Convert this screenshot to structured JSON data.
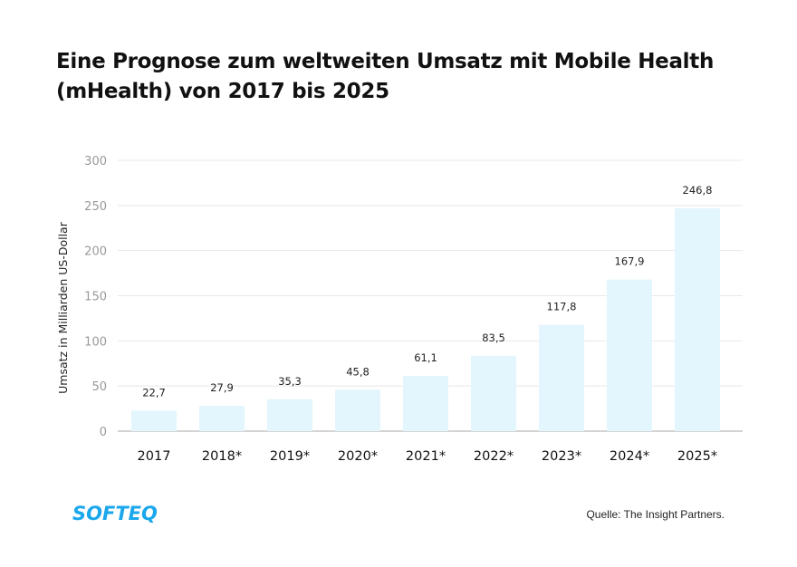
{
  "chart_data": {
    "type": "bar",
    "title": "Eine Prognose zum weltweiten Umsatz mit Mobile Health (mHealth) von 2017 bis 2025",
    "xlabel": "",
    "ylabel": "Umsatz in Milliarden US-Dollar",
    "categories": [
      "2017",
      "2018*",
      "2019*",
      "2020*",
      "2021*",
      "2022*",
      "2023*",
      "2024*",
      "2025*"
    ],
    "values": [
      22.7,
      27.9,
      35.3,
      45.8,
      61.1,
      83.5,
      117.8,
      167.9,
      246.8
    ],
    "value_labels": [
      "22,7",
      "27,9",
      "35,3",
      "45,8",
      "61,1",
      "83,5",
      "117,8",
      "167,9",
      "246,8"
    ],
    "ylim": [
      0,
      300
    ],
    "yticks": [
      0,
      50,
      100,
      150,
      200,
      250,
      300
    ],
    "grid": true,
    "bar_color": "#e3f5fd"
  },
  "footer": {
    "logo": "SOFTEQ",
    "source": "Quelle: The Insight Partners.",
    "logo_color": "#1aa7ec"
  }
}
